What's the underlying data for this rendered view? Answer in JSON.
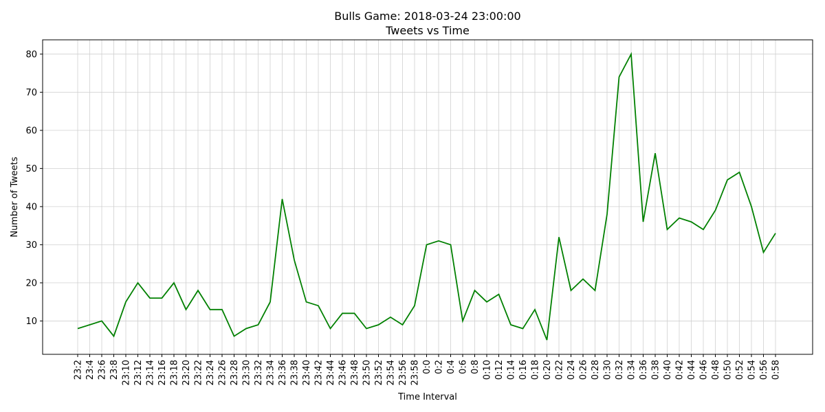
{
  "chart_data": {
    "type": "line",
    "title": "Bulls Game: 2018-03-24 23:00:00",
    "subtitle": "Tweets vs Time",
    "xlabel": "Time Interval",
    "ylabel": "Number of Tweets",
    "ylim": [
      1.25,
      83.75
    ],
    "yticks": [
      10,
      20,
      30,
      40,
      50,
      60,
      70,
      80
    ],
    "grid": true,
    "line_color": "#008000",
    "categories": [
      "23:2",
      "23:4",
      "23:6",
      "23:8",
      "23:10",
      "23:12",
      "23:14",
      "23:16",
      "23:18",
      "23:20",
      "23:22",
      "23:24",
      "23:26",
      "23:28",
      "23:30",
      "23:32",
      "23:34",
      "23:36",
      "23:38",
      "23:40",
      "23:42",
      "23:44",
      "23:46",
      "23:48",
      "23:50",
      "23:52",
      "23:54",
      "23:56",
      "23:58",
      "0:0",
      "0:2",
      "0:4",
      "0:6",
      "0:8",
      "0:10",
      "0:12",
      "0:14",
      "0:16",
      "0:18",
      "0:20",
      "0:22",
      "0:24",
      "0:26",
      "0:28",
      "0:30",
      "0:32",
      "0:34",
      "0:36",
      "0:38",
      "0:40",
      "0:42",
      "0:44",
      "0:46",
      "0:48",
      "0:50",
      "0:52",
      "0:54",
      "0:56",
      "0:58"
    ],
    "values": [
      8,
      9,
      10,
      6,
      15,
      20,
      16,
      16,
      20,
      13,
      18,
      13,
      13,
      6,
      8,
      9,
      15,
      42,
      26,
      15,
      14,
      8,
      12,
      12,
      8,
      9,
      11,
      9,
      14,
      30,
      31,
      30,
      10,
      18,
      15,
      17,
      9,
      8,
      13,
      5,
      32,
      18,
      21,
      18,
      38,
      74,
      80,
      36,
      54,
      34,
      37,
      36,
      34,
      39,
      47,
      49,
      40,
      28,
      33
    ]
  }
}
